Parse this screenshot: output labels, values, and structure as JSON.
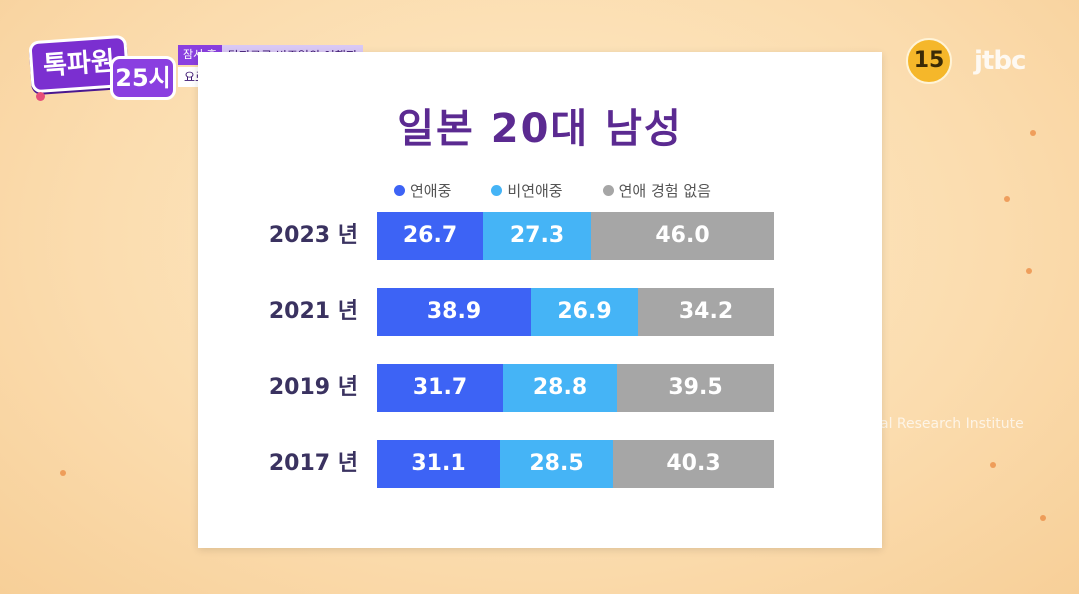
{
  "program": {
    "logo_main": "톡파원",
    "logo_sub": "25시",
    "caption_tag": "잠시 후",
    "caption_line1": "탈지구급 비주얼의 여행지",
    "caption_line2": "요르단 랜선 여행"
  },
  "broadcast": {
    "rating": "15",
    "channel": "jtbc",
    "watermark": "al Research Institute"
  },
  "colors": {
    "dating": "#3d63f5",
    "not_dating": "#45b4f6",
    "never_dated": "#a6a6a6",
    "title": "#5b2a91"
  },
  "chart_data": {
    "type": "bar",
    "orientation": "horizontal",
    "stacked": true,
    "title": "일본 20대 남성",
    "categories": [
      "2023 년",
      "2021 년",
      "2019 년",
      "2017 년"
    ],
    "series": [
      {
        "name": "연애중",
        "color": "#3d63f5",
        "values": [
          26.7,
          38.9,
          31.7,
          31.1
        ]
      },
      {
        "name": "비연애중",
        "color": "#45b4f6",
        "values": [
          27.3,
          26.9,
          28.8,
          28.5
        ]
      },
      {
        "name": "연애 경험 없음",
        "color": "#a6a6a6",
        "values": [
          46.0,
          34.2,
          39.5,
          40.3
        ]
      }
    ],
    "value_labels": [
      [
        "26.7",
        "27.3",
        "46.0"
      ],
      [
        "38.9",
        "26.9",
        "34.2"
      ],
      [
        "31.7",
        "28.8",
        "39.5"
      ],
      [
        "31.1",
        "28.5",
        "40.3"
      ]
    ],
    "xlim": [
      0,
      100
    ],
    "grid": false,
    "legend_position": "top"
  }
}
